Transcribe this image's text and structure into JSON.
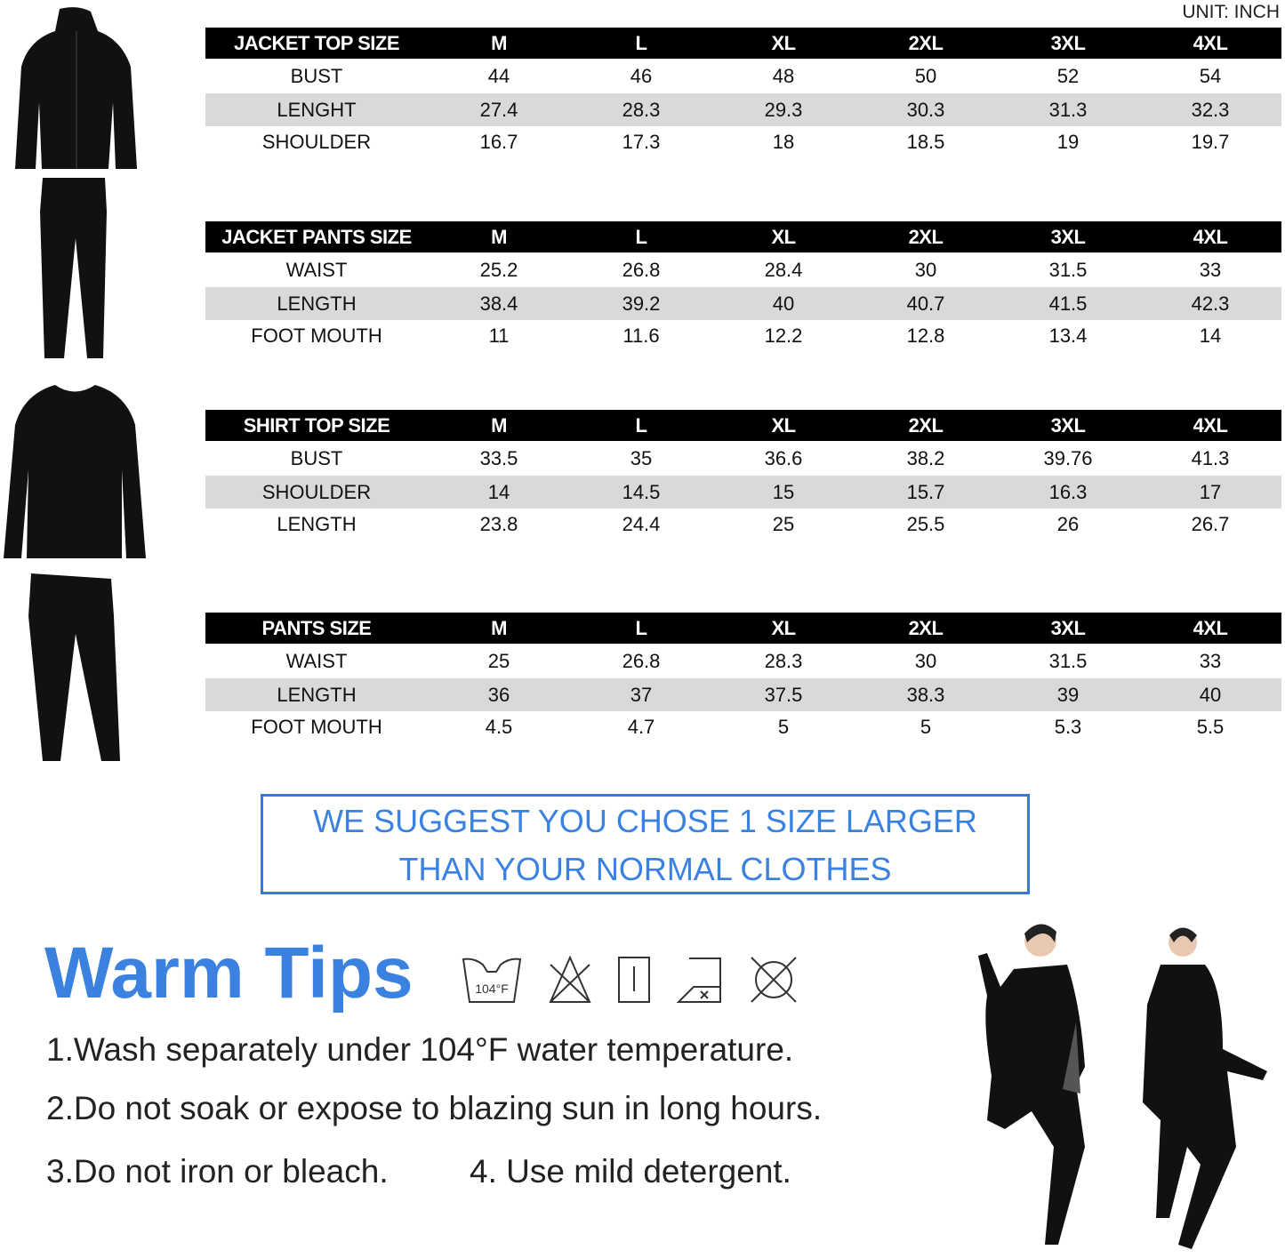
{
  "unit": "UNIT: INCH",
  "tables": [
    {
      "header": [
        "JACKET TOP SIZE",
        "M",
        "L",
        "XL",
        "2XL",
        "3XL",
        "4XL"
      ],
      "rows": [
        [
          "BUST",
          "44",
          "46",
          "48",
          "50",
          "52",
          "54"
        ],
        [
          "LENGHT",
          "27.4",
          "28.3",
          "29.3",
          "30.3",
          "31.3",
          "32.3"
        ],
        [
          "SHOULDER",
          "16.7",
          "17.3",
          "18",
          "18.5",
          "19",
          "19.7"
        ]
      ]
    },
    {
      "header": [
        "JACKET PANTS SIZE",
        "M",
        "L",
        "XL",
        "2XL",
        "3XL",
        "4XL"
      ],
      "rows": [
        [
          "WAIST",
          "25.2",
          "26.8",
          "28.4",
          "30",
          "31.5",
          "33"
        ],
        [
          "LENGTH",
          "38.4",
          "39.2",
          "40",
          "40.7",
          "41.5",
          "42.3"
        ],
        [
          "FOOT MOUTH",
          "11",
          "11.6",
          "12.2",
          "12.8",
          "13.4",
          "14"
        ]
      ]
    },
    {
      "header": [
        "SHIRT TOP SIZE",
        "M",
        "L",
        "XL",
        "2XL",
        "3XL",
        "4XL"
      ],
      "rows": [
        [
          "BUST",
          "33.5",
          "35",
          "36.6",
          "38.2",
          "39.76",
          "41.3"
        ],
        [
          "SHOULDER",
          "14",
          "14.5",
          "15",
          "15.7",
          "16.3",
          "17"
        ],
        [
          "LENGTH",
          "23.8",
          "24.4",
          "25",
          "25.5",
          "26",
          "26.7"
        ]
      ]
    },
    {
      "header": [
        "PANTS SIZE",
        "M",
        "L",
        "XL",
        "2XL",
        "3XL",
        "4XL"
      ],
      "rows": [
        [
          "WAIST",
          "25",
          "26.8",
          "28.3",
          "30",
          "31.5",
          "33"
        ],
        [
          "LENGTH",
          "36",
          "37",
          "37.5",
          "38.3",
          "39",
          "40"
        ],
        [
          "FOOT MOUTH",
          "4.5",
          "4.7",
          "5",
          "5",
          "5.3",
          "5.5"
        ]
      ]
    }
  ],
  "suggestion": [
    "WE SUGGEST YOU CHOSE 1 SIZE LARGER",
    "THAN YOUR NORMAL CLOTHES"
  ],
  "warm_tips": {
    "title": "Warm Tips",
    "wash_temp": "104°F",
    "icons": [
      "wash-104f-icon",
      "no-bleach-icon",
      "tumble-dry-icon",
      "no-iron-icon",
      "no-dry-clean-icon"
    ],
    "tips": [
      "1.Wash separately under 104°F water temperature.",
      "2.Do not soak or expose to blazing sun in long hours.",
      "3.Do not iron or bleach.",
      "4. Use mild detergent."
    ]
  },
  "colors": {
    "accent": "#3b82e0",
    "header_bg": "#000000",
    "stripe": "#d9d9d9"
  }
}
